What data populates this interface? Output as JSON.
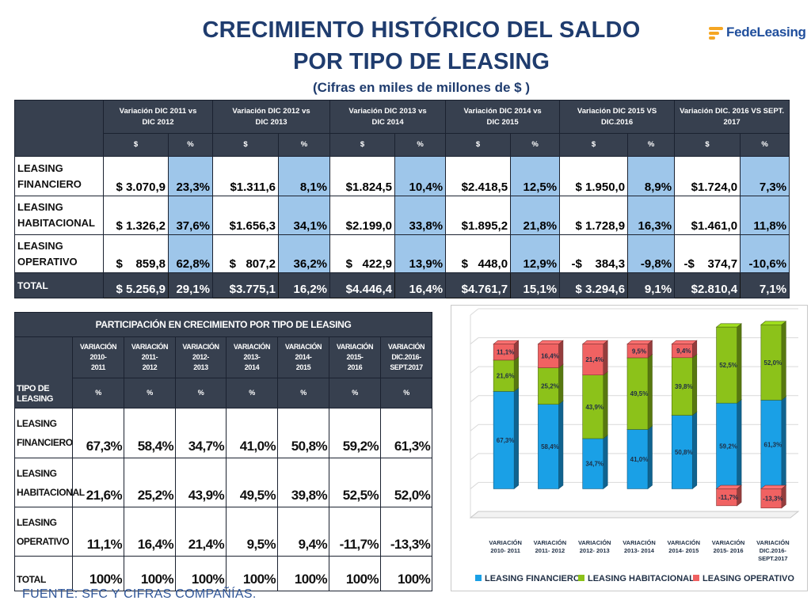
{
  "header": {
    "title_line1": "CRECIMIENTO HISTÓRICO DEL SALDO",
    "title_line2": "POR TIPO DE LEASING",
    "subtitle": "(Cifras en miles de millones de $ )",
    "logo_part1": "Fede",
    "logo_part2": "Leasing"
  },
  "top_table": {
    "periods": [
      {
        "l1": "Variación DIC 2011 vs",
        "l2": "DIC 2012"
      },
      {
        "l1": "Variación DIC 2012 vs",
        "l2": "DIC 2013"
      },
      {
        "l1": "Variación DIC 2013 vs",
        "l2": "DIC 2014"
      },
      {
        "l1": "Variación DIC 2014 vs",
        "l2": "DIC 2015"
      },
      {
        "l1": "Variación DIC  2015 VS",
        "l2": "DIC.2016"
      },
      {
        "l1": "Variación DIC. 2016 VS SEPT.",
        "l2": "2017"
      }
    ],
    "sub_value": "$",
    "sub_pct": "%",
    "rows": [
      {
        "l1": "LEASING",
        "l2": "FINANCIERO",
        "cells": [
          [
            "$ 3.070,9",
            "23,3%"
          ],
          [
            "$1.311,6",
            "8,1%"
          ],
          [
            "$1.824,5",
            "10,4%"
          ],
          [
            "$2.418,5",
            "12,5%"
          ],
          [
            "$ 1.950,0",
            "8,9%"
          ],
          [
            "$1.724,0",
            "7,3%"
          ]
        ]
      },
      {
        "l1": "LEASING",
        "l2": "HABITACIONAL",
        "cells": [
          [
            "$ 1.326,2",
            "37,6%"
          ],
          [
            "$1.656,3",
            "34,1%"
          ],
          [
            "$2.199,0",
            "33,8%"
          ],
          [
            "$1.895,2",
            "21,8%"
          ],
          [
            "$ 1.728,9",
            "16,3%"
          ],
          [
            "$1.461,0",
            "11,8%"
          ]
        ]
      },
      {
        "l1": "LEASING",
        "l2": "OPERATIVO",
        "cells": [
          [
            "$    859,8",
            "62,8%"
          ],
          [
            "$   807,2",
            "36,2%"
          ],
          [
            "$   422,9",
            "13,9%"
          ],
          [
            "$   448,0",
            "12,9%"
          ],
          [
            "-$    384,3",
            "-9,8%"
          ],
          [
            "-$    374,7",
            "-10,6%"
          ]
        ]
      },
      {
        "l1": "TOTAL",
        "l2": "",
        "cells": [
          [
            "$ 5.256,9",
            "29,1%"
          ],
          [
            "$3.775,1",
            "16,2%"
          ],
          [
            "$4.446,4",
            "16,4%"
          ],
          [
            "$4.761,7",
            "15,1%"
          ],
          [
            "$ 3.294,6",
            "9,1%"
          ],
          [
            "$2.810,4",
            "7,1%"
          ]
        ]
      }
    ]
  },
  "participation_table": {
    "title": "PARTICIPACIÓN EN CRECIMIENTO POR TIPO DE LEASING",
    "type_label": "TIPO DE LEASING",
    "pct_symbol": "%",
    "columns": [
      {
        "l1": "VARIACIÓN 2010-",
        "l2": "2011"
      },
      {
        "l1": "VARIACIÓN 2011-",
        "l2": "2012"
      },
      {
        "l1": "VARIACIÓN 2012-",
        "l2": "2013"
      },
      {
        "l1": "VARIACIÓN 2013-",
        "l2": "2014"
      },
      {
        "l1": "VARIACIÓN 2014-",
        "l2": "2015"
      },
      {
        "l1": "VARIACIÓN 2015-",
        "l2": "2016"
      },
      {
        "l1": "VARIACIÓN DIC.2016-",
        "l2": "SEPT.2017"
      }
    ],
    "rows": [
      {
        "l1": "LEASING",
        "l2": "FINANCIERO",
        "values": [
          "67,3%",
          "58,4%",
          "34,7%",
          "41,0%",
          "50,8%",
          "59,2%",
          "61,3%"
        ]
      },
      {
        "l1": "LEASING",
        "l2": "HABITACIONAL",
        "values": [
          "21,6%",
          "25,2%",
          "43,9%",
          "49,5%",
          "39,8%",
          "52,5%",
          "52,0%"
        ]
      },
      {
        "l1": "LEASING",
        "l2": "OPERATIVO",
        "values": [
          "11,1%",
          "16,4%",
          "21,4%",
          "9,5%",
          "9,4%",
          "-11,7%",
          "-13,3%"
        ]
      },
      {
        "l1": "TOTAL",
        "l2": "",
        "values": [
          "100%",
          "100%",
          "100%",
          "100%",
          "100%",
          "100%",
          "100%"
        ]
      }
    ]
  },
  "footer": {
    "source": "FUENTE: SFC Y CIFRAS COMPAÑÍAS."
  },
  "chart_data": {
    "type": "bar",
    "stacked": true,
    "three_d": true,
    "categories": [
      [
        "VARIACIÓN",
        "2010- 2011"
      ],
      [
        "VARIACIÓN",
        "2011- 2012"
      ],
      [
        "VARIACIÓN",
        "2012- 2013"
      ],
      [
        "VARIACIÓN",
        "2013- 2014"
      ],
      [
        "VARIACIÓN",
        "2014- 2015"
      ],
      [
        "VARIACIÓN",
        "2015- 2016"
      ],
      [
        "VARIACIÓN",
        "DIC.2016-",
        "SEPT.2017"
      ]
    ],
    "series": [
      {
        "name": "LEASING FINANCIERO",
        "color": "#1aa0e6",
        "values": [
          67.3,
          58.4,
          34.7,
          41.0,
          50.8,
          59.2,
          61.3
        ],
        "labels": [
          "67,3%",
          "58,4%",
          "34,7%",
          "41,0%",
          "50,8%",
          "59,2%",
          "61,3%"
        ]
      },
      {
        "name": "LEASING HABITACIONAL",
        "color": "#8cc21a",
        "values": [
          21.6,
          25.2,
          43.9,
          49.5,
          39.8,
          52.5,
          52.0
        ],
        "labels": [
          "21,6%",
          "25,2%",
          "43,9%",
          "49,5%",
          "39,8%",
          "52,5%",
          "52,0%"
        ]
      },
      {
        "name": "LEASING OPERATIVO",
        "color": "#f06262",
        "values": [
          11.1,
          16.4,
          21.4,
          9.5,
          9.4,
          -11.7,
          -13.3
        ],
        "labels": [
          "11,1%",
          "16,4%",
          "21,4%",
          "9,5%",
          "9,4%",
          "-11,7%",
          "-13,3%"
        ]
      }
    ],
    "ylim": [
      -20,
      120
    ],
    "grid": true,
    "legend": "bottom"
  }
}
